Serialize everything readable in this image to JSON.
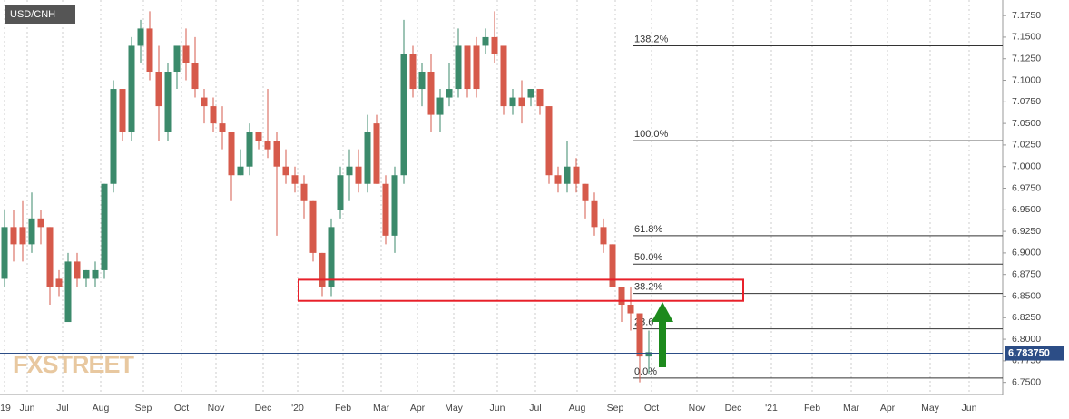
{
  "chart_data": {
    "type": "candlestick",
    "title": "USD/CNH",
    "watermark": "FXSTREET",
    "x": [
      0,
      1,
      2,
      3,
      4,
      5,
      6,
      7,
      8,
      9,
      10,
      11,
      12,
      13,
      14,
      15,
      16,
      17,
      18,
      19,
      20,
      21,
      22,
      23,
      24,
      25,
      26,
      27,
      28,
      29,
      30,
      31,
      32,
      33,
      34,
      35,
      36,
      37,
      38,
      39,
      40,
      41,
      42,
      43,
      44,
      45,
      46,
      47,
      48,
      49,
      50,
      51,
      52,
      53,
      54,
      55,
      56,
      57,
      58,
      59,
      60,
      61,
      62,
      63,
      64,
      65,
      66,
      67,
      68,
      69,
      70,
      71
    ],
    "open": [
      6.87,
      6.93,
      6.93,
      6.91,
      6.94,
      6.93,
      6.87,
      6.82,
      6.89,
      6.87,
      6.87,
      6.88,
      6.98,
      7.09,
      7.04,
      7.14,
      7.16,
      7.11,
      7.04,
      7.11,
      7.14,
      7.12,
      7.08,
      7.07,
      7.05,
      7.04,
      6.99,
      7.0,
      7.04,
      7.03,
      7.03,
      7.0,
      6.99,
      6.98,
      6.96,
      6.9,
      6.86,
      6.95,
      6.99,
      7.0,
      6.98,
      7.05,
      6.98,
      6.92,
      6.99,
      7.13,
      7.09,
      7.11,
      7.06,
      7.08,
      7.09,
      7.14,
      7.14,
      7.14,
      7.15,
      7.14,
      7.07,
      7.08,
      7.08,
      7.09,
      7.07,
      6.99,
      6.98,
      7.0,
      6.98,
      6.96,
      6.93,
      6.91,
      6.86,
      6.84,
      6.83,
      6.78
    ],
    "high": [
      6.95,
      6.95,
      6.96,
      6.97,
      6.95,
      6.93,
      6.88,
      6.9,
      6.9,
      6.88,
      6.89,
      6.98,
      7.1,
      7.09,
      7.15,
      7.17,
      7.18,
      7.14,
      7.12,
      7.14,
      7.16,
      7.15,
      7.09,
      7.08,
      7.07,
      7.04,
      7.02,
      7.05,
      7.04,
      7.09,
      7.04,
      7.02,
      7.0,
      6.99,
      6.96,
      6.9,
      6.94,
      7.0,
      7.02,
      7.02,
      7.06,
      7.06,
      6.99,
      7.0,
      7.17,
      7.14,
      7.12,
      7.13,
      7.09,
      7.12,
      7.16,
      7.14,
      7.15,
      7.16,
      7.18,
      7.14,
      7.09,
      7.1,
      7.09,
      7.09,
      7.07,
      7.0,
      7.03,
      7.01,
      6.98,
      6.97,
      6.94,
      6.91,
      6.86,
      6.86,
      6.83,
      6.81
    ],
    "low": [
      6.86,
      6.89,
      6.89,
      6.9,
      6.91,
      6.84,
      6.85,
      6.82,
      6.86,
      6.86,
      6.86,
      6.87,
      6.97,
      7.03,
      7.03,
      7.12,
      7.1,
      7.03,
      7.03,
      7.09,
      7.1,
      7.08,
      7.05,
      7.04,
      7.02,
      6.96,
      6.99,
      6.99,
      7.02,
      7.01,
      6.92,
      6.98,
      6.97,
      6.94,
      6.89,
      6.85,
      6.85,
      6.94,
      6.96,
      6.97,
      6.97,
      6.98,
      6.91,
      6.9,
      6.98,
      7.08,
      7.07,
      7.04,
      7.04,
      7.07,
      7.08,
      7.08,
      7.08,
      7.13,
      7.12,
      7.06,
      7.06,
      7.05,
      7.07,
      7.06,
      6.98,
      6.97,
      6.97,
      6.97,
      6.94,
      6.92,
      6.9,
      6.86,
      6.82,
      6.81,
      6.75,
      6.76
    ],
    "close": [
      6.93,
      6.91,
      6.91,
      6.94,
      6.93,
      6.86,
      6.86,
      6.89,
      6.87,
      6.88,
      6.88,
      6.98,
      7.09,
      7.04,
      7.14,
      7.16,
      7.11,
      7.07,
      7.11,
      7.14,
      7.12,
      7.09,
      7.07,
      7.05,
      7.04,
      6.99,
      7.0,
      7.04,
      7.03,
      7.02,
      7.0,
      6.99,
      6.98,
      6.96,
      6.9,
      6.86,
      6.93,
      6.99,
      7.0,
      6.98,
      7.04,
      6.98,
      6.92,
      6.99,
      7.13,
      7.09,
      7.11,
      7.06,
      7.08,
      7.09,
      7.14,
      7.09,
      7.09,
      7.15,
      7.13,
      7.07,
      7.08,
      7.07,
      7.09,
      7.07,
      6.99,
      6.98,
      7.0,
      6.98,
      6.96,
      6.93,
      6.91,
      6.86,
      6.84,
      6.83,
      6.78,
      6.785
    ],
    "up_color": "#3b8a6b",
    "down_color": "#d65a4b",
    "xlim": [
      -0.5,
      110
    ],
    "ylim": [
      6.736,
      7.193
    ],
    "xticks": [
      {
        "value": 0,
        "label": "'19"
      },
      {
        "value": 2.5,
        "label": "Jun"
      },
      {
        "value": 6.4,
        "label": "Jul"
      },
      {
        "value": 10.6,
        "label": "Aug"
      },
      {
        "value": 15.3,
        "label": "Sep"
      },
      {
        "value": 19.5,
        "label": "Oct"
      },
      {
        "value": 23.3,
        "label": "Nov"
      },
      {
        "value": 28.5,
        "label": "Dec"
      },
      {
        "value": 32.3,
        "label": "'20"
      },
      {
        "value": 37.3,
        "label": "Feb"
      },
      {
        "value": 41.5,
        "label": "Mar"
      },
      {
        "value": 45.5,
        "label": "Apr"
      },
      {
        "value": 49.5,
        "label": "May"
      },
      {
        "value": 54.3,
        "label": "Jun"
      },
      {
        "value": 58.5,
        "label": "Jul"
      },
      {
        "value": 63.1,
        "label": "Aug"
      },
      {
        "value": 67.3,
        "label": "Sep"
      },
      {
        "value": 71.3,
        "label": "Oct"
      },
      {
        "value": 76.3,
        "label": "Nov"
      },
      {
        "value": 80.3,
        "label": "Dec"
      },
      {
        "value": 84.5,
        "label": "'21"
      },
      {
        "value": 89,
        "label": "Feb"
      },
      {
        "value": 93.3,
        "label": "Mar"
      },
      {
        "value": 97.3,
        "label": "Apr"
      },
      {
        "value": 102,
        "label": "May"
      },
      {
        "value": 106.3,
        "label": "Jun"
      }
    ],
    "yticks": [
      {
        "value": 7.175,
        "label": "7.1750"
      },
      {
        "value": 7.15,
        "label": "7.1500"
      },
      {
        "value": 7.125,
        "label": "7.1250"
      },
      {
        "value": 7.1,
        "label": "7.1000"
      },
      {
        "value": 7.075,
        "label": "7.0750"
      },
      {
        "value": 7.05,
        "label": "7.0500"
      },
      {
        "value": 7.025,
        "label": "7.0250"
      },
      {
        "value": 7,
        "label": "7.0000"
      },
      {
        "value": 6.975,
        "label": "6.9750"
      },
      {
        "value": 6.95,
        "label": "6.9500"
      },
      {
        "value": 6.925,
        "label": "6.9250"
      },
      {
        "value": 6.9,
        "label": "6.9000"
      },
      {
        "value": 6.875,
        "label": "6.8750"
      },
      {
        "value": 6.85,
        "label": "6.8500"
      },
      {
        "value": 6.825,
        "label": "6.8250"
      },
      {
        "value": 6.8,
        "label": "6.8000"
      },
      {
        "value": 6.775,
        "label": "6.7750"
      },
      {
        "value": 6.75,
        "label": "6.7500"
      }
    ],
    "grid": "x",
    "last_price": {
      "value": 6.78375,
      "label": "6.783750"
    },
    "last_price_color": "#2c4d86",
    "levels": [
      {
        "label": "138.2%",
        "value": 7.14
      },
      {
        "label": "100.0%",
        "value": 7.03
      },
      {
        "label": "61.8%",
        "value": 6.92
      },
      {
        "label": "50.0%",
        "value": 6.887
      },
      {
        "label": "38.2%",
        "value": 6.853
      },
      {
        "label": "23.6",
        "value": 6.812
      },
      {
        "label": "0.0%",
        "value": 6.755
      }
    ],
    "levels_start": 69.2,
    "zone": [
      6.8445,
      6.869
    ],
    "zone_x": [
      32.4,
      81.4
    ],
    "zone_color": "#e8202a"
  }
}
